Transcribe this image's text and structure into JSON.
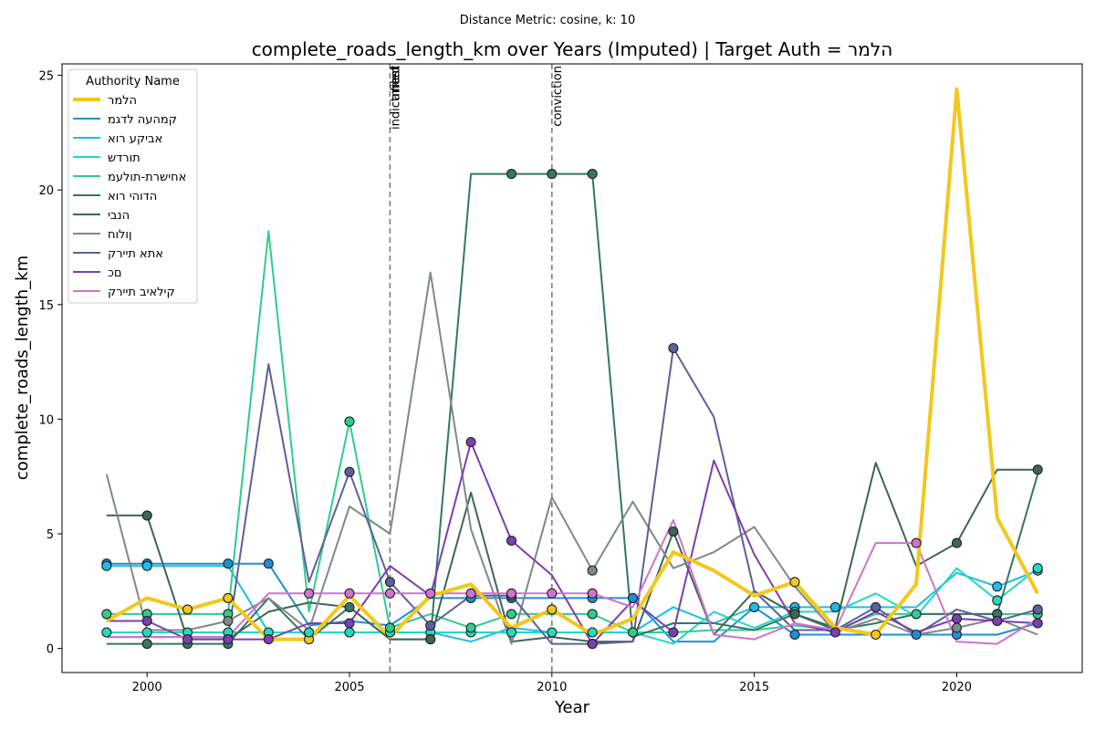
{
  "chart_data": {
    "type": "line",
    "suptitle": "Distance Metric: cosine, k: 10",
    "title": "complete_roads_length_km over Years (Imputed) | Target Auth = הלמר",
    "xlabel": "Year",
    "ylabel": "complete_roads_length_km",
    "xlim": [
      1997.9,
      2023.1
    ],
    "ylim": [
      -1.05,
      25.5
    ],
    "xticks": [
      2000,
      2005,
      2010,
      2015,
      2020
    ],
    "yticks": [
      0,
      5,
      10,
      15,
      20,
      25
    ],
    "grid": false,
    "legend_title": "Authority Name",
    "legend_position": "top-left",
    "events": [
      {
        "x": 2006,
        "labels": [
          "indictment",
          "filed",
          "arrest"
        ]
      },
      {
        "x": 2010,
        "labels": [
          "conviction"
        ]
      }
    ],
    "x": [
      1999,
      2000,
      2001,
      2002,
      2003,
      2004,
      2005,
      2006,
      2007,
      2008,
      2009,
      2010,
      2011,
      2012,
      2013,
      2014,
      2015,
      2016,
      2017,
      2018,
      2019,
      2020,
      2021,
      2022
    ],
    "series": [
      {
        "name": "הלמר",
        "color": "#f2c81c",
        "width": 4,
        "target": true,
        "values": [
          1.2,
          2.2,
          1.7,
          2.2,
          0.4,
          0.4,
          2.3,
          0.5,
          2.3,
          2.8,
          0.9,
          1.7,
          0.6,
          1.3,
          4.2,
          3.4,
          2.3,
          2.9,
          0.9,
          0.6,
          2.8,
          24.4,
          5.7,
          2.4
        ],
        "imputed": [
          0,
          0,
          1,
          1,
          0,
          1,
          0,
          0,
          0,
          0,
          0,
          1,
          0,
          0,
          0,
          0,
          0,
          1,
          0,
          1,
          0,
          0,
          0,
          0
        ]
      },
      {
        "name": "קמהעה לדגמ",
        "color": "#1f8fd6",
        "width": 2,
        "values": [
          3.7,
          3.7,
          3.7,
          3.7,
          3.7,
          1.0,
          1.2,
          1.0,
          2.2,
          2.2,
          2.2,
          2.2,
          2.2,
          2.2,
          0.3,
          0.3,
          1.8,
          0.6,
          0.6,
          0.6,
          0.6,
          0.6,
          0.6,
          1.1
        ],
        "imputed": [
          1,
          1,
          0,
          1,
          1,
          0,
          0,
          0,
          0,
          1,
          1,
          0,
          1,
          1,
          0,
          0,
          0,
          1,
          0,
          0,
          1,
          1,
          0,
          0
        ]
      },
      {
        "name": "אביקע רוא",
        "color": "#1dbde6",
        "width": 2,
        "values": [
          3.6,
          3.6,
          3.6,
          3.6,
          0.7,
          0.7,
          0.7,
          0.7,
          0.7,
          0.3,
          0.9,
          0.7,
          0.7,
          0.7,
          1.8,
          1.1,
          1.8,
          1.8,
          1.8,
          1.8,
          1.8,
          3.3,
          2.7,
          3.4
        ],
        "imputed": [
          1,
          1,
          0,
          0,
          0,
          0,
          1,
          0,
          0,
          0,
          0,
          0,
          0,
          0,
          0,
          0,
          1,
          1,
          1,
          0,
          0,
          0,
          1,
          1
        ]
      },
      {
        "name": "תורדש",
        "color": "#23d9c0",
        "width": 2,
        "values": [
          0.7,
          0.7,
          0.7,
          0.7,
          0.7,
          0.7,
          0.7,
          0.7,
          0.7,
          0.7,
          0.7,
          0.7,
          0.7,
          0.7,
          0.2,
          1.6,
          0.9,
          1.6,
          1.6,
          2.4,
          1.4,
          3.5,
          2.1,
          3.5
        ],
        "imputed": [
          1,
          1,
          1,
          1,
          1,
          1,
          1,
          1,
          1,
          1,
          1,
          1,
          1,
          1,
          0,
          0,
          0,
          1,
          0,
          0,
          0,
          0,
          1,
          1
        ]
      },
      {
        "name": "אחישרת-תולעמ",
        "color": "#2ecc8f",
        "width": 2,
        "values": [
          1.5,
          1.5,
          1.5,
          1.5,
          18.2,
          1.6,
          9.9,
          0.9,
          1.5,
          0.9,
          1.5,
          1.5,
          1.5,
          0.7,
          0.7,
          0.8,
          0.8,
          1.0,
          0.8,
          1.5,
          1.5,
          1.5,
          1.5,
          1.5
        ],
        "imputed": [
          1,
          1,
          0,
          1,
          0,
          0,
          1,
          1,
          0,
          1,
          1,
          0,
          1,
          1,
          0,
          0,
          0,
          0,
          0,
          0,
          1,
          0,
          1,
          1
        ]
      },
      {
        "name": "הדוהי רוא",
        "color": "#347864",
        "width": 2,
        "values": [
          0.2,
          0.2,
          0.2,
          0.2,
          2.2,
          0.4,
          1.8,
          0.4,
          0.4,
          20.7,
          20.7,
          20.7,
          20.7,
          0.5,
          1.1,
          1.1,
          0.8,
          1.5,
          0.8,
          1.1,
          1.5,
          1.5,
          1.5,
          7.6
        ],
        "imputed": [
          0,
          1,
          1,
          1,
          0,
          0,
          1,
          0,
          1,
          0,
          1,
          1,
          1,
          0,
          0,
          0,
          0,
          0,
          0,
          0,
          0,
          0,
          1,
          0
        ]
      },
      {
        "name": "הנבי",
        "color": "#3e6655",
        "width": 2,
        "values": [
          5.8,
          5.8,
          0.4,
          0.4,
          1.6,
          2.0,
          1.8,
          0.4,
          0.4,
          6.8,
          0.3,
          0.5,
          0.3,
          0.3,
          5.1,
          0.6,
          2.5,
          1.5,
          0.9,
          8.1,
          3.6,
          4.6,
          7.8,
          7.8
        ],
        "imputed": [
          0,
          1,
          0,
          1,
          0,
          0,
          0,
          0,
          1,
          0,
          0,
          0,
          0,
          0,
          1,
          0,
          0,
          1,
          0,
          0,
          0,
          1,
          0,
          1
        ]
      },
      {
        "name": "ןולוח",
        "color": "#7d8a86",
        "width": 2,
        "values": [
          7.6,
          0.8,
          0.8,
          1.2,
          2.2,
          0.8,
          6.2,
          5.0,
          16.4,
          5.2,
          0.2,
          6.6,
          3.4,
          6.4,
          3.5,
          4.2,
          5.3,
          2.7,
          0.7,
          1.3,
          0.6,
          0.9,
          1.3,
          0.6
        ],
        "imputed": [
          0,
          0,
          0,
          1,
          0,
          0,
          0,
          0,
          0,
          0,
          0,
          0,
          1,
          0,
          0,
          0,
          0,
          0,
          0,
          0,
          0,
          1,
          0,
          0
        ]
      },
      {
        "name": "אתא תיירק",
        "color": "#5e5f9c",
        "width": 2,
        "values": [
          0.5,
          0.5,
          0.5,
          0.5,
          12.4,
          2.9,
          7.7,
          2.9,
          1.0,
          2.3,
          2.3,
          0.2,
          0.2,
          0.3,
          13.1,
          10.1,
          2.5,
          0.8,
          0.8,
          1.8,
          0.6,
          1.7,
          1.2,
          1.7
        ],
        "imputed": [
          0,
          0,
          0,
          0,
          0,
          0,
          1,
          1,
          1,
          0,
          1,
          0,
          1,
          0,
          1,
          0,
          0,
          0,
          0,
          1,
          0,
          0,
          1,
          1
        ]
      },
      {
        "name": "םכ",
        "color": "#7b3fb0",
        "width": 2,
        "values": [
          1.2,
          1.2,
          0.4,
          0.4,
          0.4,
          1.1,
          1.1,
          3.6,
          2.3,
          9.0,
          4.7,
          3.2,
          0.2,
          2.1,
          0.7,
          8.2,
          4.1,
          1.1,
          0.7,
          1.6,
          0.7,
          1.3,
          1.2,
          1.1
        ],
        "imputed": [
          0,
          1,
          1,
          1,
          1,
          0,
          1,
          0,
          0,
          1,
          1,
          0,
          1,
          0,
          1,
          0,
          0,
          0,
          1,
          0,
          0,
          1,
          1,
          1
        ]
      },
      {
        "name": "קילאיב תיירק",
        "color": "#cf73cf",
        "width": 2,
        "values": [
          0.5,
          0.5,
          0.5,
          0.5,
          2.4,
          2.4,
          2.4,
          2.4,
          2.4,
          2.4,
          2.4,
          2.4,
          2.4,
          1.8,
          5.6,
          0.6,
          0.4,
          1.1,
          0.8,
          4.6,
          4.6,
          0.3,
          0.2,
          1.3
        ],
        "imputed": [
          0,
          0,
          0,
          0,
          0,
          1,
          1,
          1,
          1,
          1,
          1,
          1,
          1,
          0,
          0,
          0,
          0,
          0,
          0,
          0,
          1,
          0,
          0,
          0
        ]
      }
    ]
  }
}
